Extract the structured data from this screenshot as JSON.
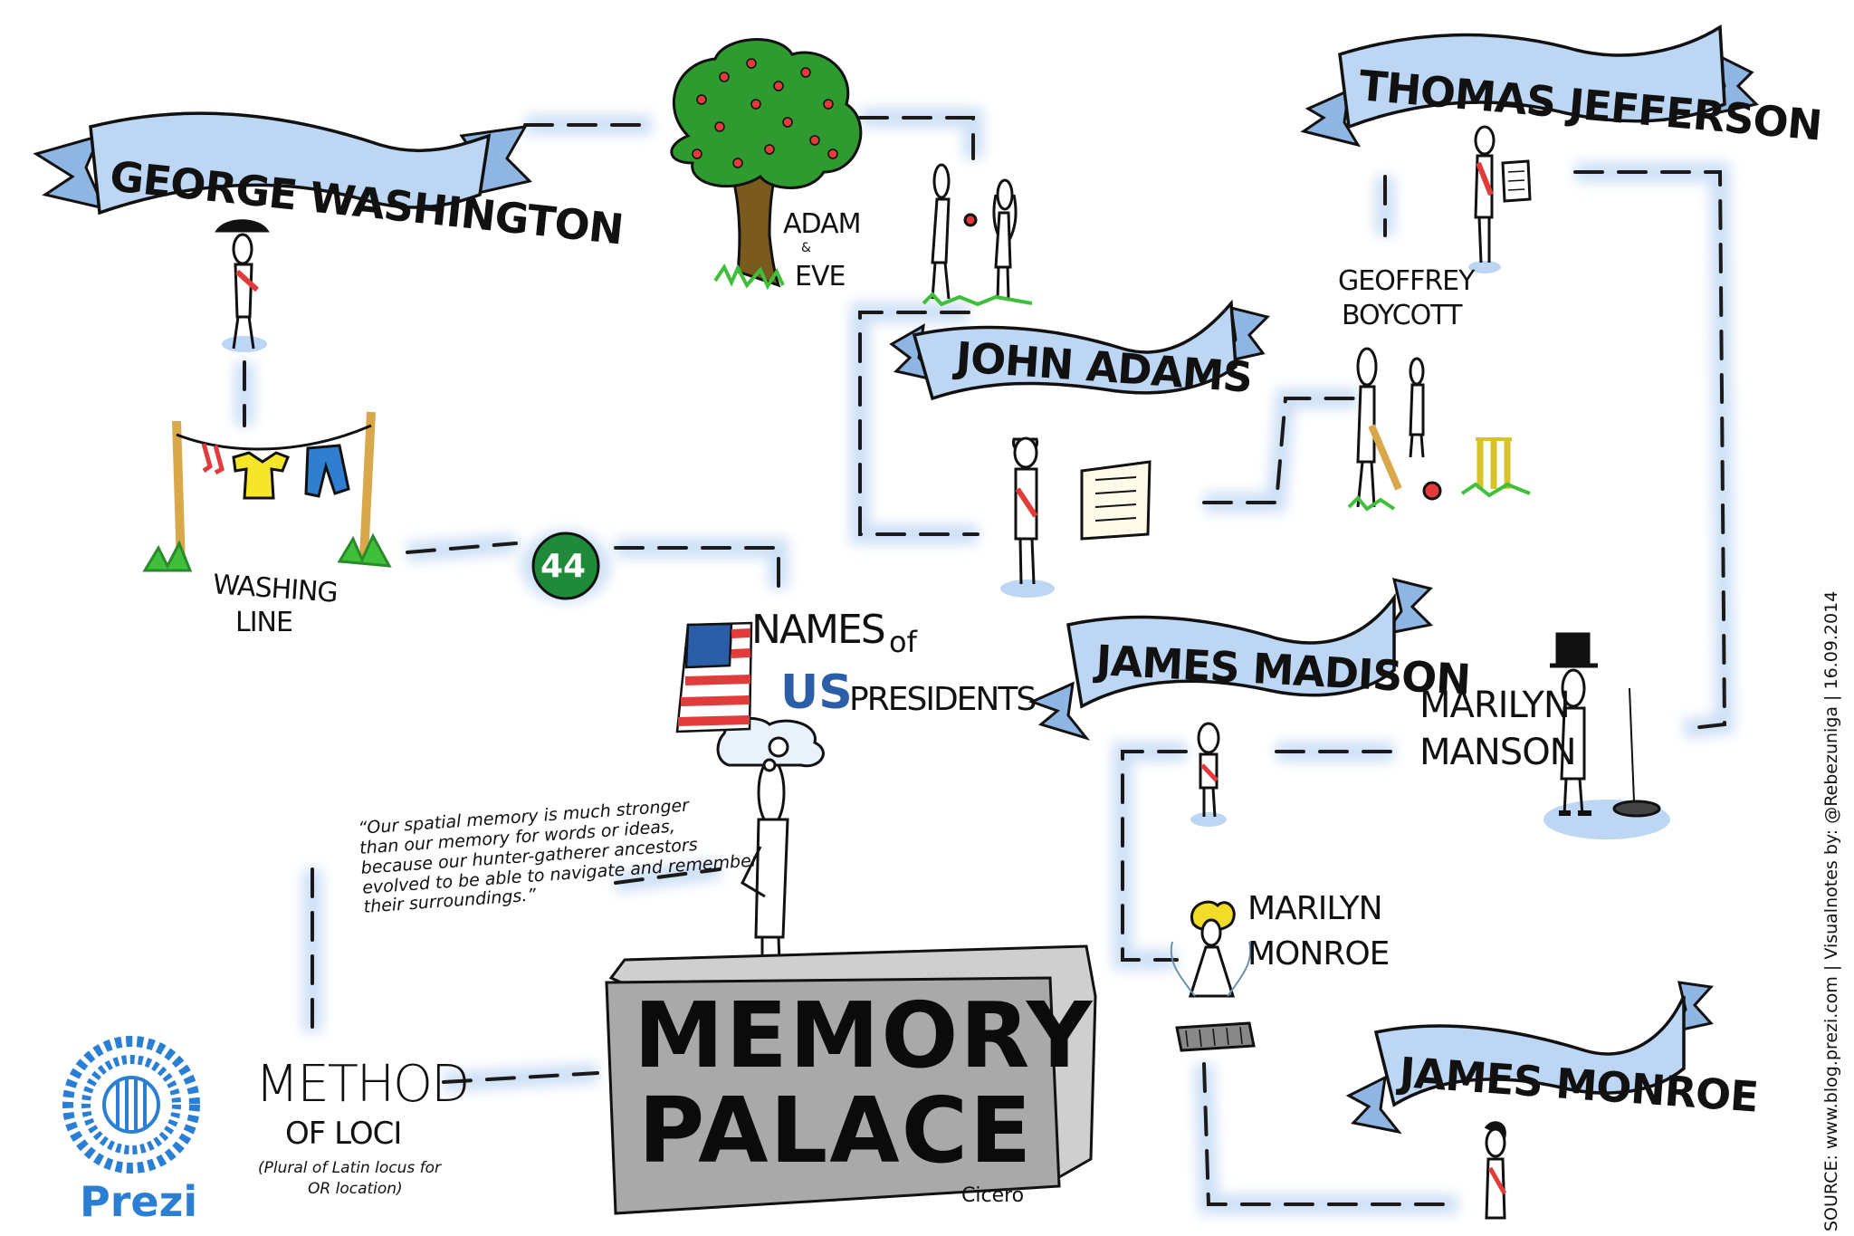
{
  "banners": {
    "washington": "GEORGE WASHINGTON",
    "jefferson": "THOMAS JEFFERSON",
    "adams": "JOHN ADAMS",
    "madison": "JAMES MADISON",
    "monroe": "JAMES MONROE"
  },
  "labels": {
    "adam": "ADAM",
    "amp": "&",
    "eve": "EVE",
    "washing_1": "WASHING",
    "washing_2": "LINE",
    "geoffrey_1": "GEOFFREY",
    "geoffrey_2": "BOYCOTT",
    "manson_1": "MARILYN",
    "manson_2": "MANSON",
    "monroe_1": "MARILYN",
    "monroe_2": "MONROE",
    "count": "44",
    "names_1": "NAMES",
    "names_of": "of",
    "names_us": "US",
    "names_2": "PRESIDENTS",
    "method_1": "METHOD",
    "method_2": "OF LOCI",
    "method_3": "(Plural of Latin locus for",
    "method_4": "OR location)",
    "cicero": "Cicero",
    "prezi": "Prezi"
  },
  "quote": {
    "line1": "“Our spatial memory is much stronger",
    "line2": "than our memory for words or ideas,",
    "line3": "because our hunter-gatherer ancestors",
    "line4": "evolved to be able to navigate and remember",
    "line5": "their surroundings.”"
  },
  "memory_palace": {
    "line1": "MEMORY",
    "line2": "PALACE"
  },
  "source": "SOURCE: www.blog.prezi.com | Visualnotes by: @Rebezuniga | 16.09.2014",
  "colors": {
    "banner_fill": "#bcd6f3",
    "banner_shadow": "#8fb5e3",
    "path_glow": "#cfe1f6",
    "grass": "#3fbf3a",
    "tree": "#2f9a2f",
    "apple": "#e23b3b",
    "prezi_blue": "#2a7fd4",
    "badge_green": "#1f8a3a",
    "stone": "#a9a9a9"
  }
}
